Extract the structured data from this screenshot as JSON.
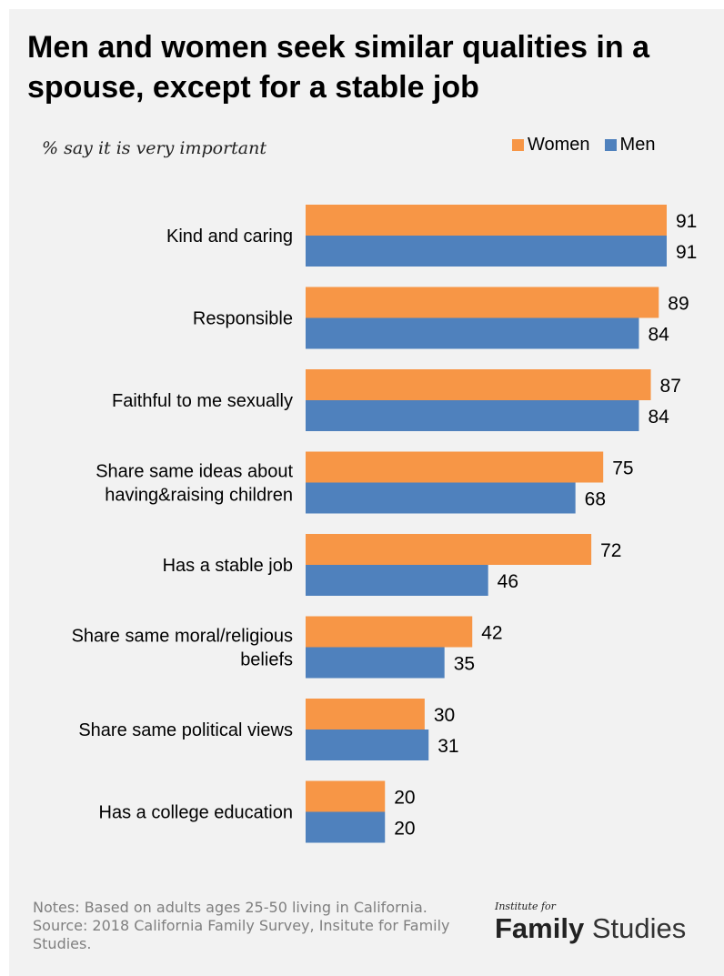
{
  "title": "Men and women seek similar qualities in a spouse, except for a stable job",
  "subtitle": "% say it is very important",
  "legend": {
    "women": "Women",
    "men": "Men"
  },
  "colors": {
    "women": "#f79646",
    "men": "#4f81bd",
    "background": "#f2f2f2"
  },
  "chart_data": {
    "type": "bar",
    "orientation": "horizontal",
    "categories": [
      [
        "Kind and caring"
      ],
      [
        "Responsible"
      ],
      [
        "Faithful to me sexually"
      ],
      [
        "Share same ideas about",
        "having&raising children"
      ],
      [
        "Has a stable job"
      ],
      [
        "Share same moral/religious",
        "beliefs"
      ],
      [
        "Share same political views"
      ],
      [
        "Has a college education"
      ]
    ],
    "series": [
      {
        "name": "Women",
        "values": [
          91,
          89,
          87,
          75,
          72,
          42,
          30,
          20
        ]
      },
      {
        "name": "Men",
        "values": [
          91,
          84,
          84,
          68,
          46,
          35,
          31,
          20
        ]
      }
    ],
    "xlim": [
      0,
      100
    ],
    "data_labels": true,
    "grid": false,
    "legend_position": "top-right"
  },
  "notes": {
    "line1": "Notes: Based on adults ages 25-50 living in California.",
    "line2": "Source: 2018 California Family Survey, Insitute for Family Studies."
  },
  "logo": {
    "small": "Institute for",
    "bold": "Family",
    "light": "Studies"
  }
}
